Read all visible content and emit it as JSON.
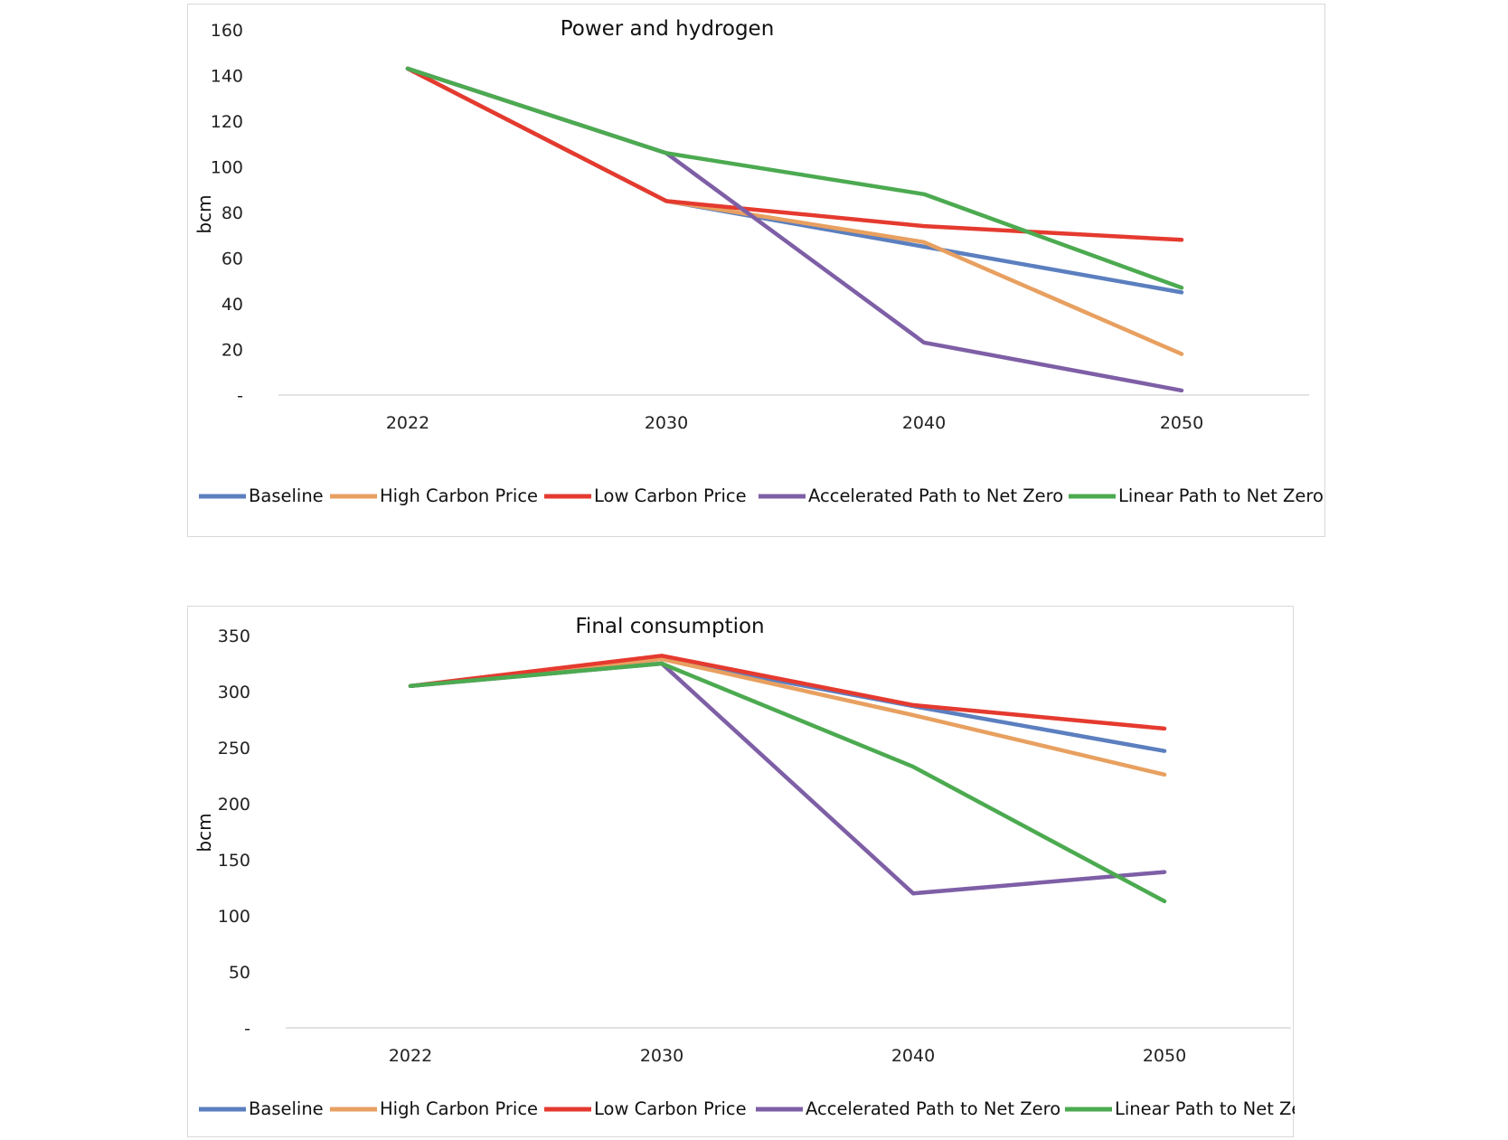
{
  "chart_data": [
    {
      "type": "line",
      "title": "Power and hydrogen",
      "xlabel": "",
      "ylabel": "bcm",
      "ylim": [
        0,
        160
      ],
      "y_ticks": [
        "-",
        "20",
        "40",
        "60",
        "80",
        "100",
        "120",
        "140",
        "160"
      ],
      "categories": [
        "2022",
        "2030",
        "2040",
        "2050"
      ],
      "legend_position": "bottom",
      "grid": false,
      "series": [
        {
          "name": "Baseline",
          "color": "#5b7fbf",
          "values": [
            143,
            85,
            65,
            45
          ]
        },
        {
          "name": "High Carbon Price",
          "color": "#e8a060",
          "values": [
            143,
            85,
            67,
            18
          ]
        },
        {
          "name": "Low Carbon Price",
          "color": "#e53a2f",
          "values": [
            143,
            85,
            74,
            68
          ]
        },
        {
          "name": "Accelerated Path to Net Zero",
          "color": "#7e5fa6",
          "values": [
            143,
            106,
            23,
            2
          ]
        },
        {
          "name": "Linear Path to Net Zero",
          "color": "#4caa50",
          "values": [
            143,
            106,
            88,
            47
          ]
        }
      ]
    },
    {
      "type": "line",
      "title": "Final consumption",
      "xlabel": "",
      "ylabel": "bcm",
      "ylim": [
        0,
        350
      ],
      "y_ticks": [
        "-",
        "50",
        "100",
        "150",
        "200",
        "250",
        "300",
        "350"
      ],
      "categories": [
        "2022",
        "2030",
        "2040",
        "2050"
      ],
      "legend_position": "bottom",
      "grid": false,
      "series": [
        {
          "name": "Baseline",
          "color": "#5b7fbf",
          "values": [
            305,
            329,
            287,
            247
          ]
        },
        {
          "name": "High Carbon Price",
          "color": "#e8a060",
          "values": [
            305,
            329,
            279,
            226
          ]
        },
        {
          "name": "Low Carbon Price",
          "color": "#e53a2f",
          "values": [
            305,
            332,
            288,
            267
          ]
        },
        {
          "name": "Accelerated Path to Net Zero",
          "color": "#7e5fa6",
          "values": [
            305,
            325,
            120,
            139
          ]
        },
        {
          "name": "Linear Path to Net Zero",
          "color": "#4caa50",
          "values": [
            305,
            325,
            233,
            113
          ]
        }
      ]
    }
  ]
}
